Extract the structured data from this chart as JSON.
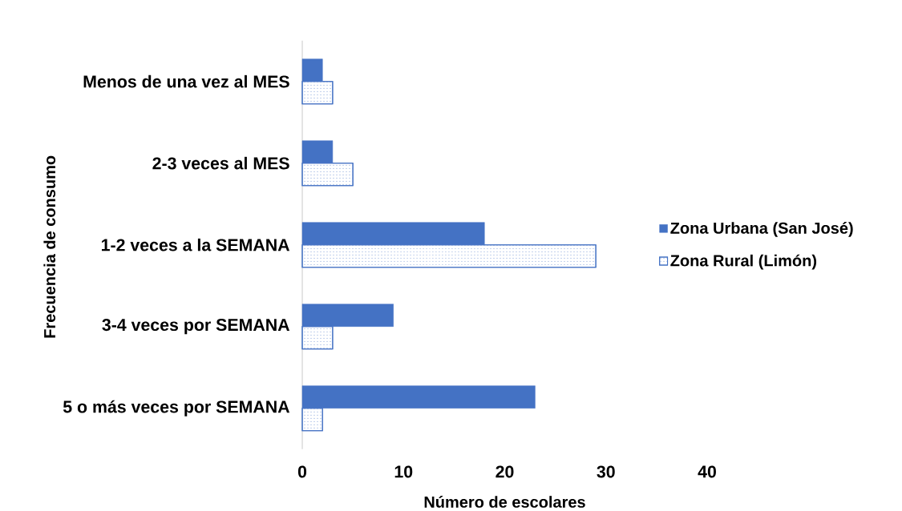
{
  "chart_data": {
    "type": "bar",
    "orientation": "horizontal",
    "xlabel": "Número de escolares",
    "ylabel": "Frecuencia de consumo",
    "categories": [
      "Menos de una vez al MES",
      "2-3 veces al MES",
      "1-2 veces a la SEMANA",
      "3-4 veces por SEMANA",
      "5 o más veces por SEMANA"
    ],
    "series": [
      {
        "name": "Zona Urbana (San José)",
        "color": "#4472c4",
        "values": [
          2,
          3,
          18,
          9,
          23
        ]
      },
      {
        "name": "Zona Rural (Limón)",
        "color": "#4472c4",
        "values": [
          3,
          5,
          29,
          3,
          2
        ]
      }
    ],
    "xlim": [
      0,
      40
    ],
    "xticks": [
      0,
      10,
      20,
      30,
      40
    ],
    "grid": false,
    "legend": "right"
  }
}
